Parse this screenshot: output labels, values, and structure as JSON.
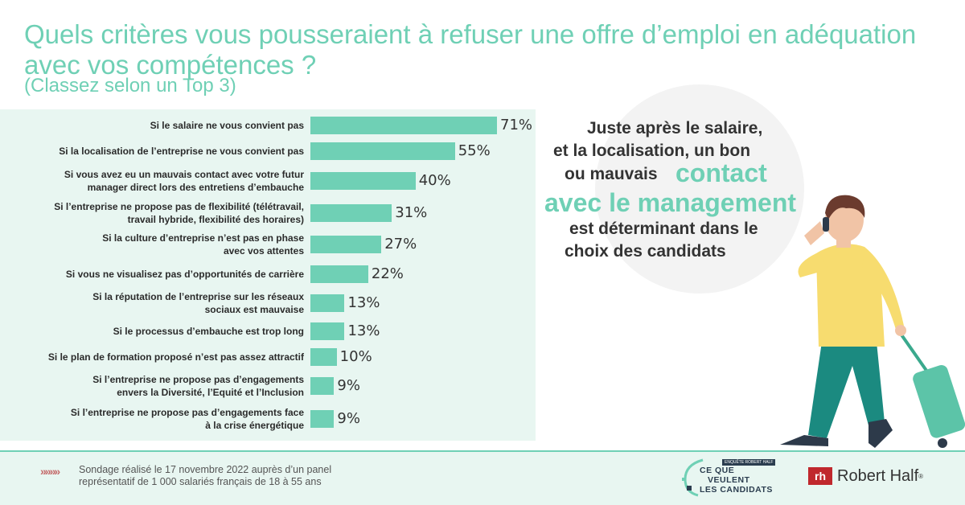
{
  "title": "Quels critères vous pousseraient à refuser une offre d’emploi en adéquation avec vos compétences ?",
  "subtitle": "(Classez selon un Top 3)",
  "chart_data": {
    "type": "bar",
    "orientation": "horizontal",
    "categories": [
      "Si le salaire ne vous convient pas",
      "Si la localisation de l’entreprise ne vous convient pas",
      "Si vous avez eu un mauvais contact avec votre futur\nmanager direct lors des entretiens d’embauche",
      "Si l’entreprise ne propose pas de flexibilité (télétravail,\ntravail hybride, flexibilité des horaires)",
      "Si la culture d’entreprise n’est pas en phase\navec vos attentes",
      "Si vous ne visualisez pas d’opportunités de carrière",
      "Si la réputation de l’entreprise sur les réseaux\nsociaux est mauvaise",
      "Si le processus d’embauche est trop long",
      "Si le plan de formation proposé n’est pas assez attractif",
      "Si l’entreprise ne propose pas d’engagements\nenvers la Diversité, l’Equité et l’Inclusion",
      "Si l’entreprise ne propose pas d’engagements face\nà la crise énergétique"
    ],
    "values": [
      71,
      55,
      40,
      31,
      27,
      22,
      13,
      13,
      10,
      9,
      9
    ],
    "value_labels": [
      "71%",
      "55%",
      "40%",
      "31%",
      "27%",
      "22%",
      "13%",
      "13%",
      "10%",
      "9%",
      "9%"
    ],
    "color": "#6fd0b5"
  },
  "callout": {
    "line1": "Juste après le salaire,",
    "line2": "et la localisation, un bon",
    "line3a": "ou mauvais",
    "accent1": "contact",
    "accent2": "avec le management",
    "line4": "est déterminant dans le",
    "line5": "choix des candidats"
  },
  "footer": {
    "chevrons": "»»»»",
    "note_line1": "Sondage réalisé le 17 novembre 2022 auprès d’un panel",
    "note_line2": "représentatif de 1 000 salariés français de 18 à 55 ans"
  },
  "logos": {
    "cqvlc_badge": "ENQUÊTE ROBERT HALF",
    "cqvlc_line1": "CE QUE",
    "cqvlc_line2": "VEULENT",
    "cqvlc_line3": "LES CANDIDATS",
    "rh_mark": "rh",
    "rh_name": "Robert Half",
    "rh_reg": "®"
  },
  "colors": {
    "accent": "#6fd0b5",
    "panel": "#e8f6f1",
    "brand_red": "#c0282d",
    "illustration_shirt": "#f7dc6f",
    "illustration_pants": "#1b8a80",
    "illustration_suitcase": "#5cc4a8"
  }
}
